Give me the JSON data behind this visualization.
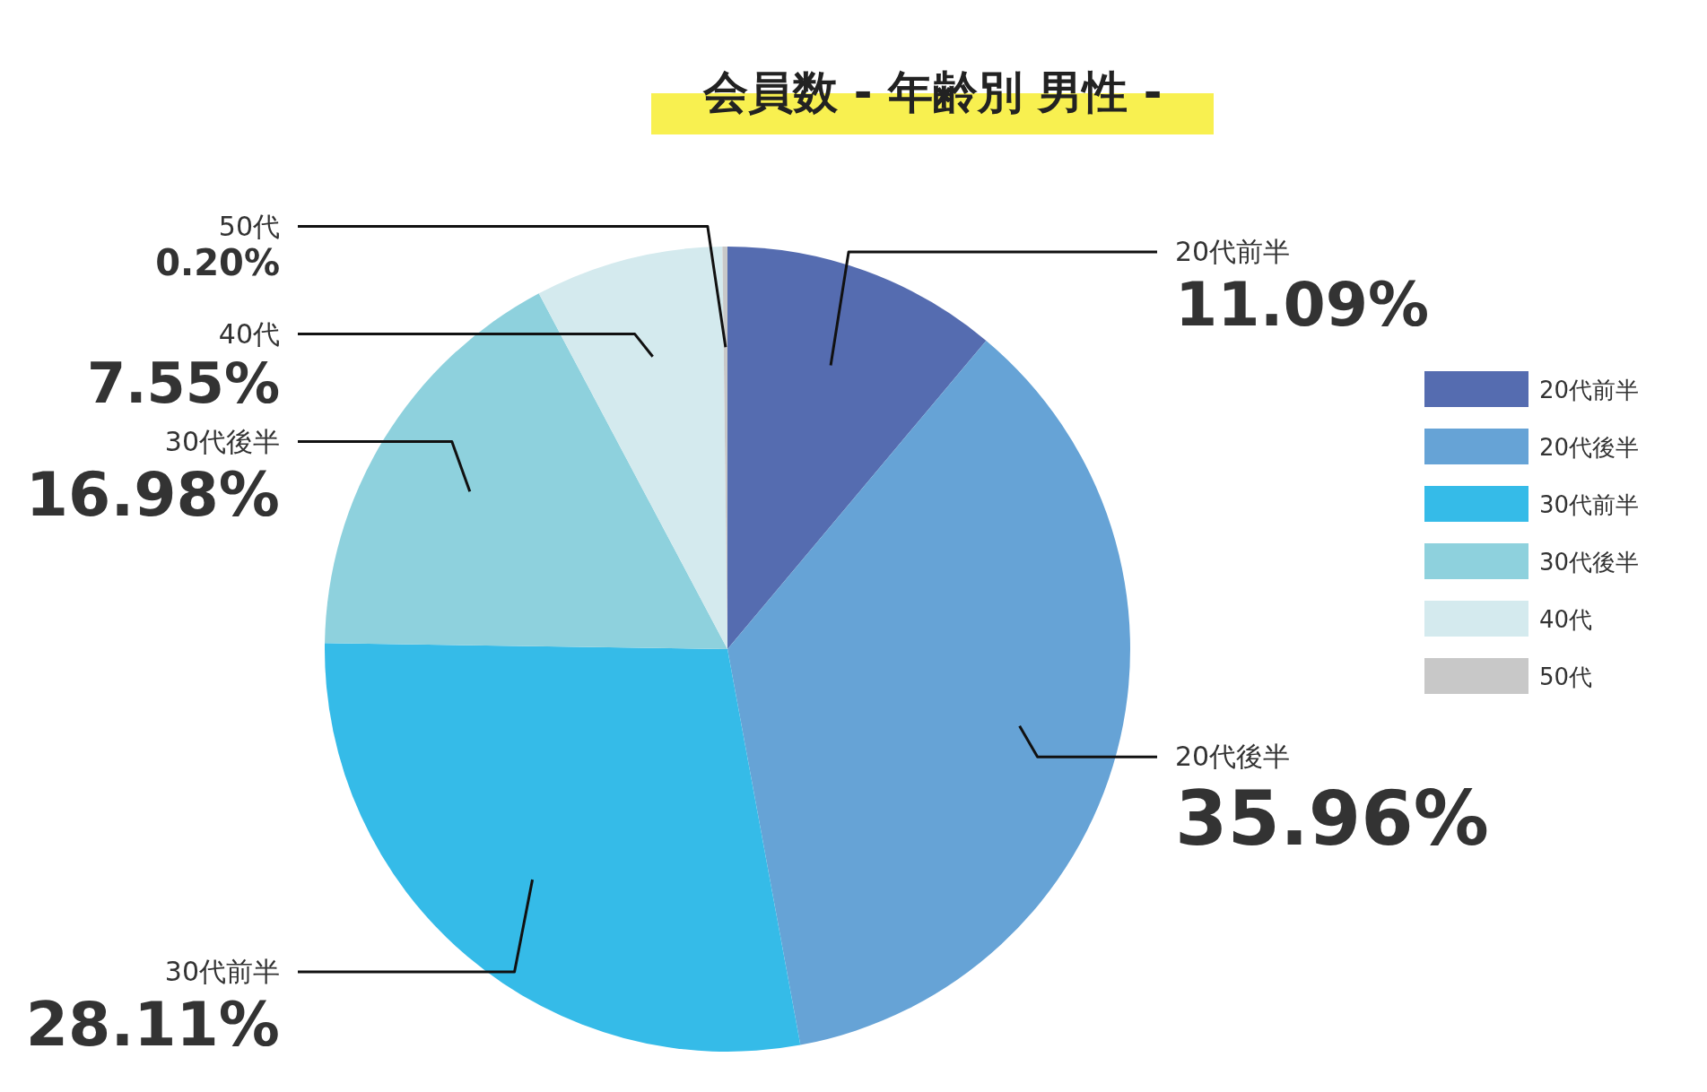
{
  "chart_data": {
    "type": "pie",
    "title": "会員数 - 年齢別 男性 -",
    "categories": [
      "20代前半",
      "20代後半",
      "30代前半",
      "30代後半",
      "40代",
      "50代"
    ],
    "values": [
      11.09,
      35.96,
      28.11,
      16.98,
      7.55,
      0.2
    ],
    "value_labels": [
      "11.09%",
      "35.96%",
      "28.11%",
      "16.98%",
      "7.55%",
      "0.20%"
    ],
    "colors": [
      "#556cb0",
      "#66a3d6",
      "#35bbe8",
      "#8ed1dd",
      "#d4eaee",
      "#c8c8c8"
    ],
    "legend": "right"
  }
}
